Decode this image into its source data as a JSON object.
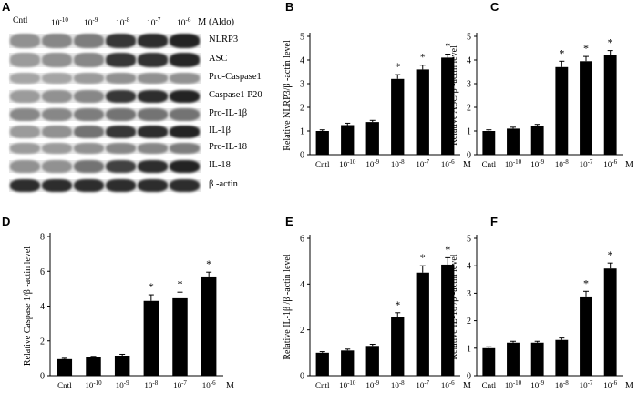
{
  "panel_letters": [
    "A",
    "B",
    "C",
    "D",
    "E",
    "F"
  ],
  "blot": {
    "lanes": [
      {
        "label": "Cntl"
      },
      {
        "label": "10",
        "exp": "-10"
      },
      {
        "label": "10",
        "exp": "-9"
      },
      {
        "label": "10",
        "exp": "-8"
      },
      {
        "label": "10",
        "exp": "-7"
      },
      {
        "label": "10",
        "exp": "-6"
      }
    ],
    "unit": "M",
    "treatment": "(Aldo)",
    "rows": [
      {
        "label": "NLRP3",
        "intensity": [
          0.35,
          0.4,
          0.45,
          0.8,
          0.85,
          0.9
        ]
      },
      {
        "label": "ASC",
        "intensity": [
          0.3,
          0.35,
          0.4,
          0.8,
          0.82,
          0.88
        ]
      },
      {
        "label": "Pro-Caspase1",
        "intensity": [
          0.25,
          0.25,
          0.3,
          0.35,
          0.35,
          0.35
        ]
      },
      {
        "label": "Caspase1 P20",
        "intensity": [
          0.3,
          0.35,
          0.4,
          0.8,
          0.85,
          0.9
        ]
      },
      {
        "label": "Pro-IL-1β",
        "intensity": [
          0.4,
          0.4,
          0.45,
          0.5,
          0.5,
          0.5
        ]
      },
      {
        "label": "IL-1β",
        "intensity": [
          0.3,
          0.35,
          0.5,
          0.8,
          0.85,
          0.9
        ]
      },
      {
        "label": "Pro-IL-18",
        "intensity": [
          0.3,
          0.3,
          0.35,
          0.4,
          0.4,
          0.45
        ]
      },
      {
        "label": "IL-18",
        "intensity": [
          0.35,
          0.35,
          0.5,
          0.75,
          0.85,
          0.9
        ]
      },
      {
        "label": "β -actin",
        "intensity": [
          0.85,
          0.85,
          0.85,
          0.85,
          0.85,
          0.85
        ]
      }
    ]
  },
  "chart_data": [
    {
      "type": "bar",
      "panel": "B",
      "categories": [
        {
          "label": "Cntl"
        },
        {
          "label": "10",
          "exp": "-10"
        },
        {
          "label": "10",
          "exp": "-9"
        },
        {
          "label": "10",
          "exp": "-8"
        },
        {
          "label": "10",
          "exp": "-7"
        },
        {
          "label": "10",
          "exp": "-6"
        }
      ],
      "unit_suffix": "M",
      "values": [
        1.0,
        1.25,
        1.38,
        3.2,
        3.6,
        4.1
      ],
      "errors": [
        0.05,
        0.08,
        0.07,
        0.18,
        0.18,
        0.15
      ],
      "significant": [
        false,
        false,
        false,
        true,
        true,
        true
      ],
      "ylabel": "Relative NLRP3/β -actin level",
      "ylim": [
        0,
        5
      ],
      "yticks": [
        0,
        1,
        2,
        3,
        4,
        5
      ]
    },
    {
      "type": "bar",
      "panel": "C",
      "categories": [
        {
          "label": "Cntl"
        },
        {
          "label": "10",
          "exp": "-10"
        },
        {
          "label": "10",
          "exp": "-9"
        },
        {
          "label": "10",
          "exp": "-8"
        },
        {
          "label": "10",
          "exp": "-7"
        },
        {
          "label": "10",
          "exp": "-6"
        }
      ],
      "unit_suffix": "M",
      "values": [
        1.0,
        1.1,
        1.2,
        3.7,
        3.95,
        4.2
      ],
      "errors": [
        0.05,
        0.06,
        0.08,
        0.25,
        0.2,
        0.2
      ],
      "significant": [
        false,
        false,
        false,
        true,
        true,
        true
      ],
      "ylabel": "Relative ASC/β -actin level",
      "ylim": [
        0,
        5
      ],
      "yticks": [
        0,
        1,
        2,
        3,
        4,
        5
      ]
    },
    {
      "type": "bar",
      "panel": "D",
      "categories": [
        {
          "label": "Cntl"
        },
        {
          "label": "10",
          "exp": "-10"
        },
        {
          "label": "10",
          "exp": "-9"
        },
        {
          "label": "10",
          "exp": "-8"
        },
        {
          "label": "10",
          "exp": "-7"
        },
        {
          "label": "10",
          "exp": "-6"
        }
      ],
      "unit_suffix": "M",
      "values": [
        0.95,
        1.05,
        1.15,
        4.3,
        4.45,
        5.65
      ],
      "errors": [
        0.05,
        0.06,
        0.08,
        0.35,
        0.35,
        0.3
      ],
      "significant": [
        false,
        false,
        false,
        true,
        true,
        true
      ],
      "ylabel": "Relative Caspase 1/β -actin level",
      "ylim": [
        0,
        8
      ],
      "yticks": [
        0,
        2,
        4,
        6,
        8
      ]
    },
    {
      "type": "bar",
      "panel": "E",
      "categories": [
        {
          "label": "Cntl"
        },
        {
          "label": "10",
          "exp": "-10"
        },
        {
          "label": "10",
          "exp": "-9"
        },
        {
          "label": "10",
          "exp": "-8"
        },
        {
          "label": "10",
          "exp": "-7"
        },
        {
          "label": "10",
          "exp": "-6"
        }
      ],
      "unit_suffix": "M",
      "values": [
        1.0,
        1.1,
        1.3,
        2.55,
        4.5,
        4.85
      ],
      "errors": [
        0.05,
        0.06,
        0.07,
        0.2,
        0.3,
        0.3
      ],
      "significant": [
        false,
        false,
        false,
        true,
        true,
        true
      ],
      "ylabel": "Relative IL-1β /β -actin level",
      "ylim": [
        0,
        6
      ],
      "yticks": [
        0,
        2,
        4,
        6
      ]
    },
    {
      "type": "bar",
      "panel": "F",
      "categories": [
        {
          "label": "Cntl"
        },
        {
          "label": "10",
          "exp": "-10"
        },
        {
          "label": "10",
          "exp": "-9"
        },
        {
          "label": "10",
          "exp": "-8"
        },
        {
          "label": "10",
          "exp": "-7"
        },
        {
          "label": "10",
          "exp": "-6"
        }
      ],
      "unit_suffix": "M",
      "values": [
        1.0,
        1.2,
        1.2,
        1.3,
        2.85,
        3.9
      ],
      "errors": [
        0.05,
        0.05,
        0.05,
        0.07,
        0.22,
        0.2
      ],
      "significant": [
        false,
        false,
        false,
        false,
        true,
        true
      ],
      "ylabel": "Relative IL-18 /β -actin level",
      "ylim": [
        0,
        5
      ],
      "yticks": [
        0,
        1,
        2,
        3,
        4,
        5
      ]
    }
  ],
  "significance_marker": "*"
}
